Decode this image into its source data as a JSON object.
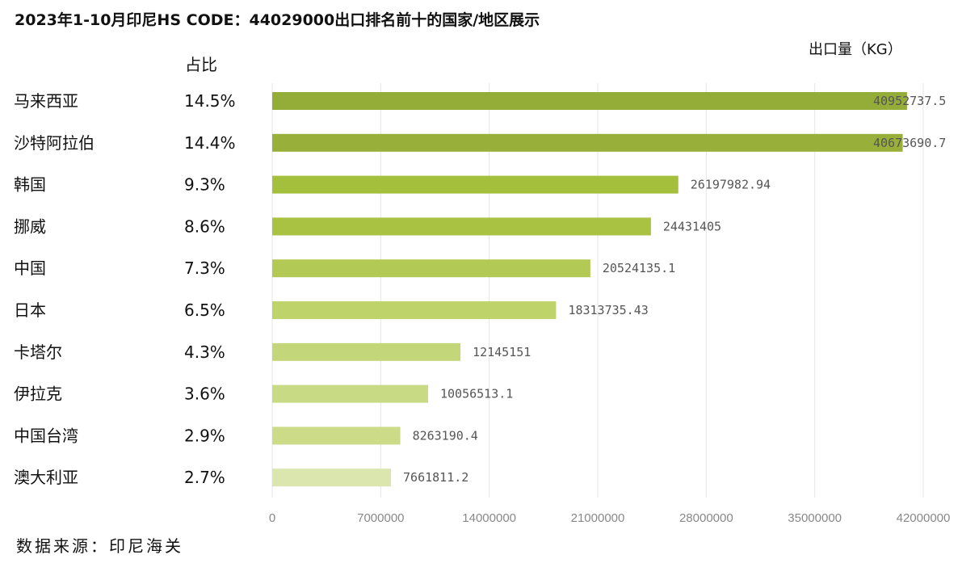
{
  "title": "2023年1-10月印尼HS CODE：44029000出口排名前十的国家/地区展示",
  "unit_label": "出口量（KG）",
  "share_header": "占比",
  "source": "数据来源：印尼海关",
  "chart_data": {
    "type": "bar",
    "orientation": "horizontal",
    "title": "2023年1-10月印尼HS CODE：44029000出口排名前十的国家/地区展示",
    "xlabel": "出口量（KG）",
    "ylabel": "",
    "categories": [
      "马来西亚",
      "沙特阿拉伯",
      "韩国",
      "挪威",
      "中国",
      "日本",
      "卡塔尔",
      "伊拉克",
      "中国台湾",
      "澳大利亚"
    ],
    "values": [
      40952737.5,
      40673690.7,
      26197982.94,
      24431405,
      20524135.1,
      18313735.43,
      12145151,
      10056513.1,
      8263190.4,
      7661811.2
    ],
    "value_labels": [
      "40952737.5",
      "40673690.7",
      "26197982.94",
      "24431405",
      "20524135.1",
      "18313735.43",
      "12145151",
      "10056513.1",
      "8263190.4",
      "7661811.2"
    ],
    "shares": [
      "14.5%",
      "14.4%",
      "9.3%",
      "8.6%",
      "7.3%",
      "6.5%",
      "4.3%",
      "3.6%",
      "2.9%",
      "2.7%"
    ],
    "xlim": [
      0,
      42000000
    ],
    "xticks": [
      0,
      7000000,
      14000000,
      21000000,
      28000000,
      35000000,
      42000000
    ],
    "xtick_labels": [
      "0",
      "7000000",
      "14000000",
      "21000000",
      "28000000",
      "35000000",
      "42000000"
    ],
    "grid": true,
    "colors": [
      "#94ad38",
      "#98b03a",
      "#a3bf3c",
      "#a9c242",
      "#b3c955",
      "#bed46a",
      "#c4d67a",
      "#c8da84",
      "#cbdb88",
      "#dae6ae"
    ]
  }
}
